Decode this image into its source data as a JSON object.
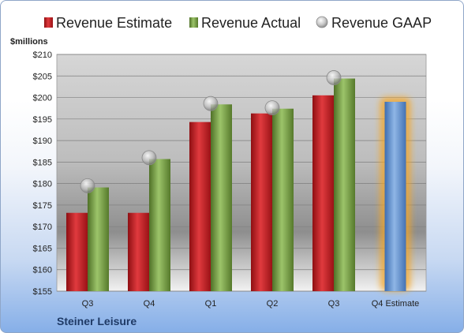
{
  "colors": {
    "estimate": "#c0161b",
    "actual": "#6f9a3a",
    "gaap": "#b8b8b8",
    "forecast": "#5b8fd1",
    "forecast_glow": "#f5a623"
  },
  "chart_data": {
    "type": "bar",
    "title": "Steiner Leisure",
    "ylabel": "$millions",
    "ylim": [
      155,
      210
    ],
    "yticks": [
      "$155",
      "$160",
      "$165",
      "$170",
      "$175",
      "$180",
      "$185",
      "$190",
      "$195",
      "$200",
      "$205",
      "$210"
    ],
    "ytick_values": [
      155,
      160,
      165,
      170,
      175,
      180,
      185,
      190,
      195,
      200,
      205,
      210
    ],
    "categories": [
      "Q3",
      "Q4",
      "Q1",
      "Q2",
      "Q3",
      "Q4 Estimate"
    ],
    "legend_position": "top",
    "grid": true,
    "series": [
      {
        "name": "Revenue Estimate",
        "type": "bar",
        "values": [
          173.2,
          173.2,
          194.3,
          196.3,
          200.5,
          null
        ]
      },
      {
        "name": "Revenue Actual",
        "type": "bar",
        "values": [
          179.1,
          185.7,
          198.4,
          197.4,
          204.4,
          null
        ]
      },
      {
        "name": "Revenue GAAP",
        "type": "scatter",
        "values": [
          179.5,
          186.0,
          198.6,
          197.6,
          204.6,
          null
        ]
      }
    ],
    "forecast": {
      "category": "Q4 Estimate",
      "value": 199.0
    }
  }
}
